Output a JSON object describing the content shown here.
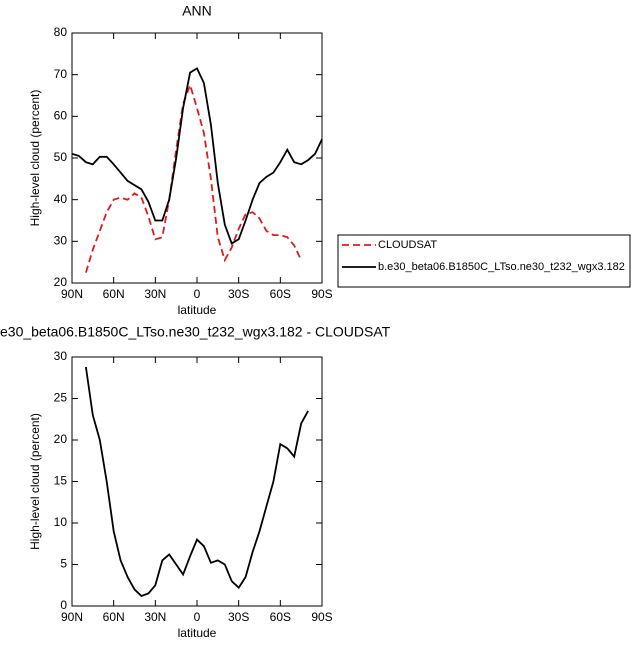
{
  "chart_data": [
    {
      "type": "line",
      "title": "ANN",
      "xlabel": "latitude",
      "ylabel": "High-level cloud (percent)",
      "x": [
        90,
        85,
        80,
        75,
        70,
        65,
        60,
        55,
        50,
        45,
        40,
        35,
        30,
        25,
        20,
        15,
        10,
        5,
        0,
        -5,
        -10,
        -15,
        -20,
        -25,
        -30,
        -35,
        -40,
        -45,
        -50,
        -55,
        -60,
        -65,
        -70,
        -75,
        -80,
        -85,
        -90
      ],
      "xlim": [
        90,
        -90
      ],
      "xticks": [
        {
          "value": 90,
          "label": "90N"
        },
        {
          "value": 60,
          "label": "60N"
        },
        {
          "value": 30,
          "label": "30N"
        },
        0,
        {
          "value": -30,
          "label": "30S"
        },
        {
          "value": -60,
          "label": "60S"
        },
        {
          "value": -90,
          "label": "90S"
        }
      ],
      "ylim": [
        20,
        80
      ],
      "yticks": [
        20,
        30,
        40,
        50,
        60,
        70,
        80
      ],
      "legend": "right",
      "series": [
        {
          "name": "CLOUDSAT",
          "color": "#e0191d",
          "dash": true,
          "values": [
            null,
            null,
            22.5,
            28,
            32.5,
            37,
            40,
            40.5,
            40,
            41.5,
            40.5,
            36,
            30.5,
            31,
            40,
            52,
            63,
            67.5,
            62,
            56,
            45,
            31,
            25.5,
            28.5,
            33,
            36.5,
            37,
            35.5,
            32.5,
            31.5,
            31.5,
            31,
            29,
            25.5,
            null,
            null,
            null
          ]
        },
        {
          "name": "b.e30_beta06.B1850C_LTso.ne30_t232_wgx3.182",
          "color": "#000000",
          "dash": false,
          "values": [
            51,
            50.5,
            49,
            48.5,
            50.3,
            50.3,
            48.5,
            46.5,
            44.5,
            43.5,
            42.5,
            39.5,
            35,
            35,
            40,
            50,
            62,
            70.5,
            71.5,
            68,
            58,
            44,
            34,
            29.5,
            30.5,
            35,
            40,
            44,
            45.5,
            46.5,
            49,
            52,
            49,
            48.5,
            49.5,
            51,
            54.5
          ]
        }
      ]
    },
    {
      "type": "line",
      "title": "e30_beta06.B1850C_LTso.ne30_t232_wgx3.182 - CLOUDSAT",
      "xlabel": "latitude",
      "ylabel": "High-level cloud (percent)",
      "x": [
        80,
        75,
        70,
        65,
        60,
        55,
        50,
        45,
        40,
        35,
        30,
        25,
        20,
        15,
        10,
        5,
        0,
        -5,
        -10,
        -15,
        -20,
        -25,
        -30,
        -35,
        -40,
        -45,
        -50,
        -55,
        -60,
        -65,
        -70,
        -75,
        -80
      ],
      "xlim": [
        90,
        -90
      ],
      "xticks": [
        {
          "value": 90,
          "label": "90N"
        },
        {
          "value": 60,
          "label": "60N"
        },
        {
          "value": 30,
          "label": "30N"
        },
        0,
        {
          "value": -30,
          "label": "30S"
        },
        {
          "value": -60,
          "label": "60S"
        },
        {
          "value": -90,
          "label": "90S"
        }
      ],
      "ylim": [
        0,
        30
      ],
      "yticks": [
        0,
        5,
        10,
        15,
        20,
        25,
        30
      ],
      "series": [
        {
          "color": "#000000",
          "dash": false,
          "values": [
            28.8,
            23,
            20,
            15,
            9,
            5.5,
            3.5,
            2,
            1.2,
            1.5,
            2.5,
            5.5,
            6.2,
            5,
            3.8,
            6,
            8,
            7.2,
            5.2,
            5.5,
            5,
            3,
            2.2,
            3.5,
            6.5,
            9,
            12,
            15,
            19.5,
            19,
            18,
            22,
            23.5
          ]
        }
      ]
    }
  ]
}
